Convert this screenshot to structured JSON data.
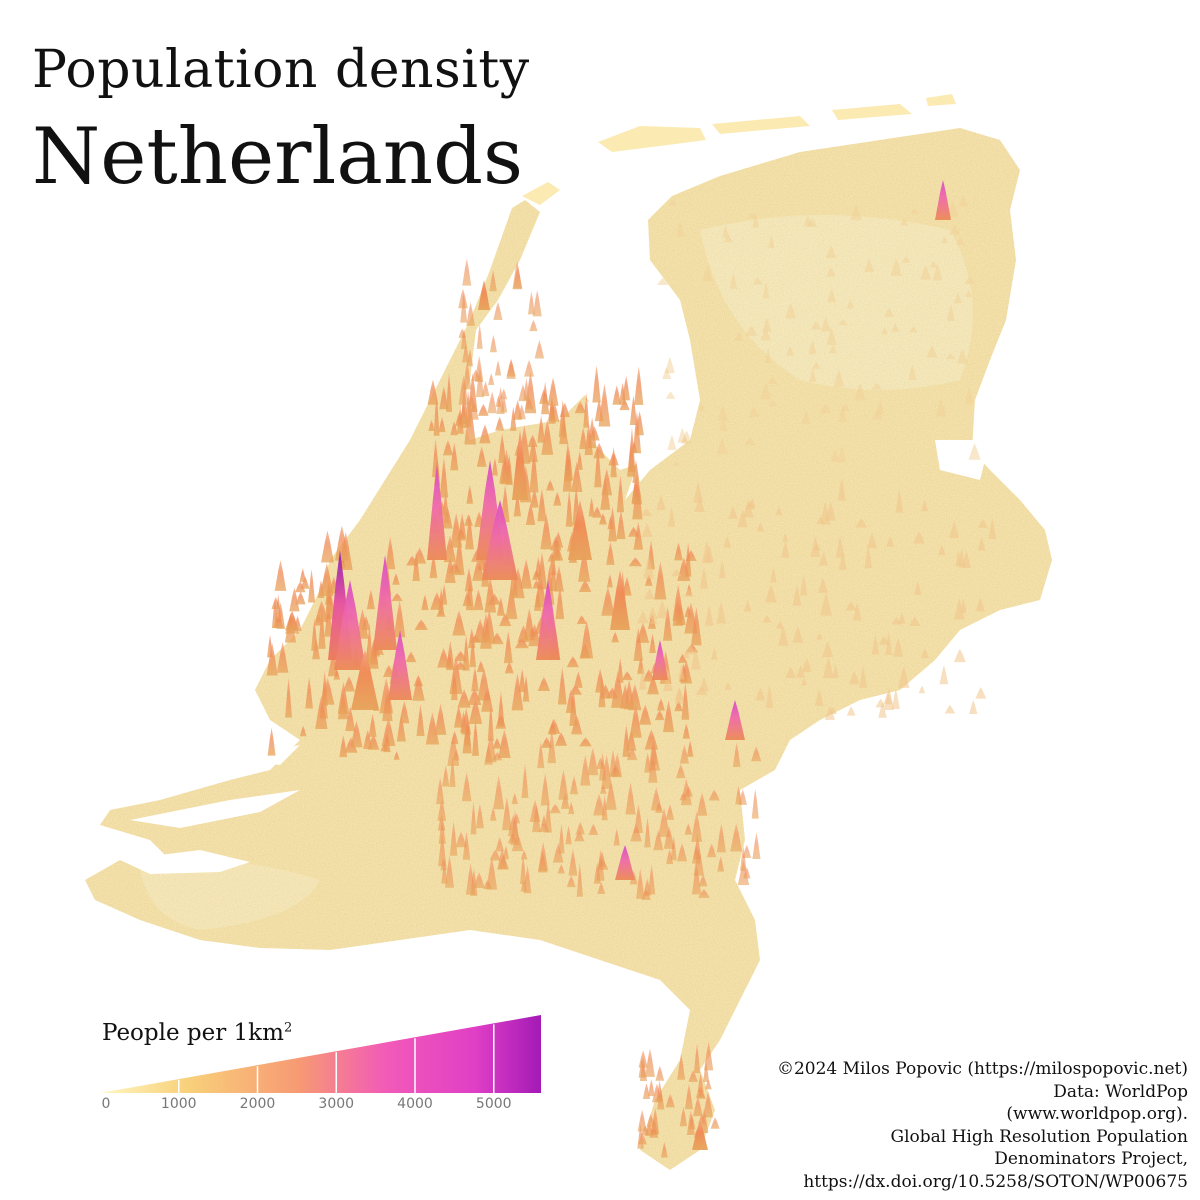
{
  "title": {
    "line1": "Population density",
    "line2": "Netherlands"
  },
  "legend": {
    "label": "People per 1km",
    "label_superscript": "2",
    "ticks": [
      "0",
      "1000",
      "2000",
      "3000",
      "4000",
      "5000"
    ],
    "min": 0,
    "max": 5600,
    "colors": [
      "#fff7c2",
      "#f8d07a",
      "#f79a73",
      "#f25ab8",
      "#e03fc6",
      "#a31ab6"
    ]
  },
  "credits": [
    "©2024 Milos Popovic (https://milospopovic.net)",
    "Data: WorldPop",
    "(www.worldpop.org).",
    "Global High Resolution Population",
    "Denominators Project,",
    "https://dx.doi.org/10.5258/SOTON/WP00675"
  ],
  "map_colors": {
    "land_light": "#fbe9b0",
    "land_mid": "#f3d08f",
    "peak_orange": "#ee9350",
    "peak_pink": "#ec5fb0",
    "peak_purple": "#9a1fb0"
  }
}
